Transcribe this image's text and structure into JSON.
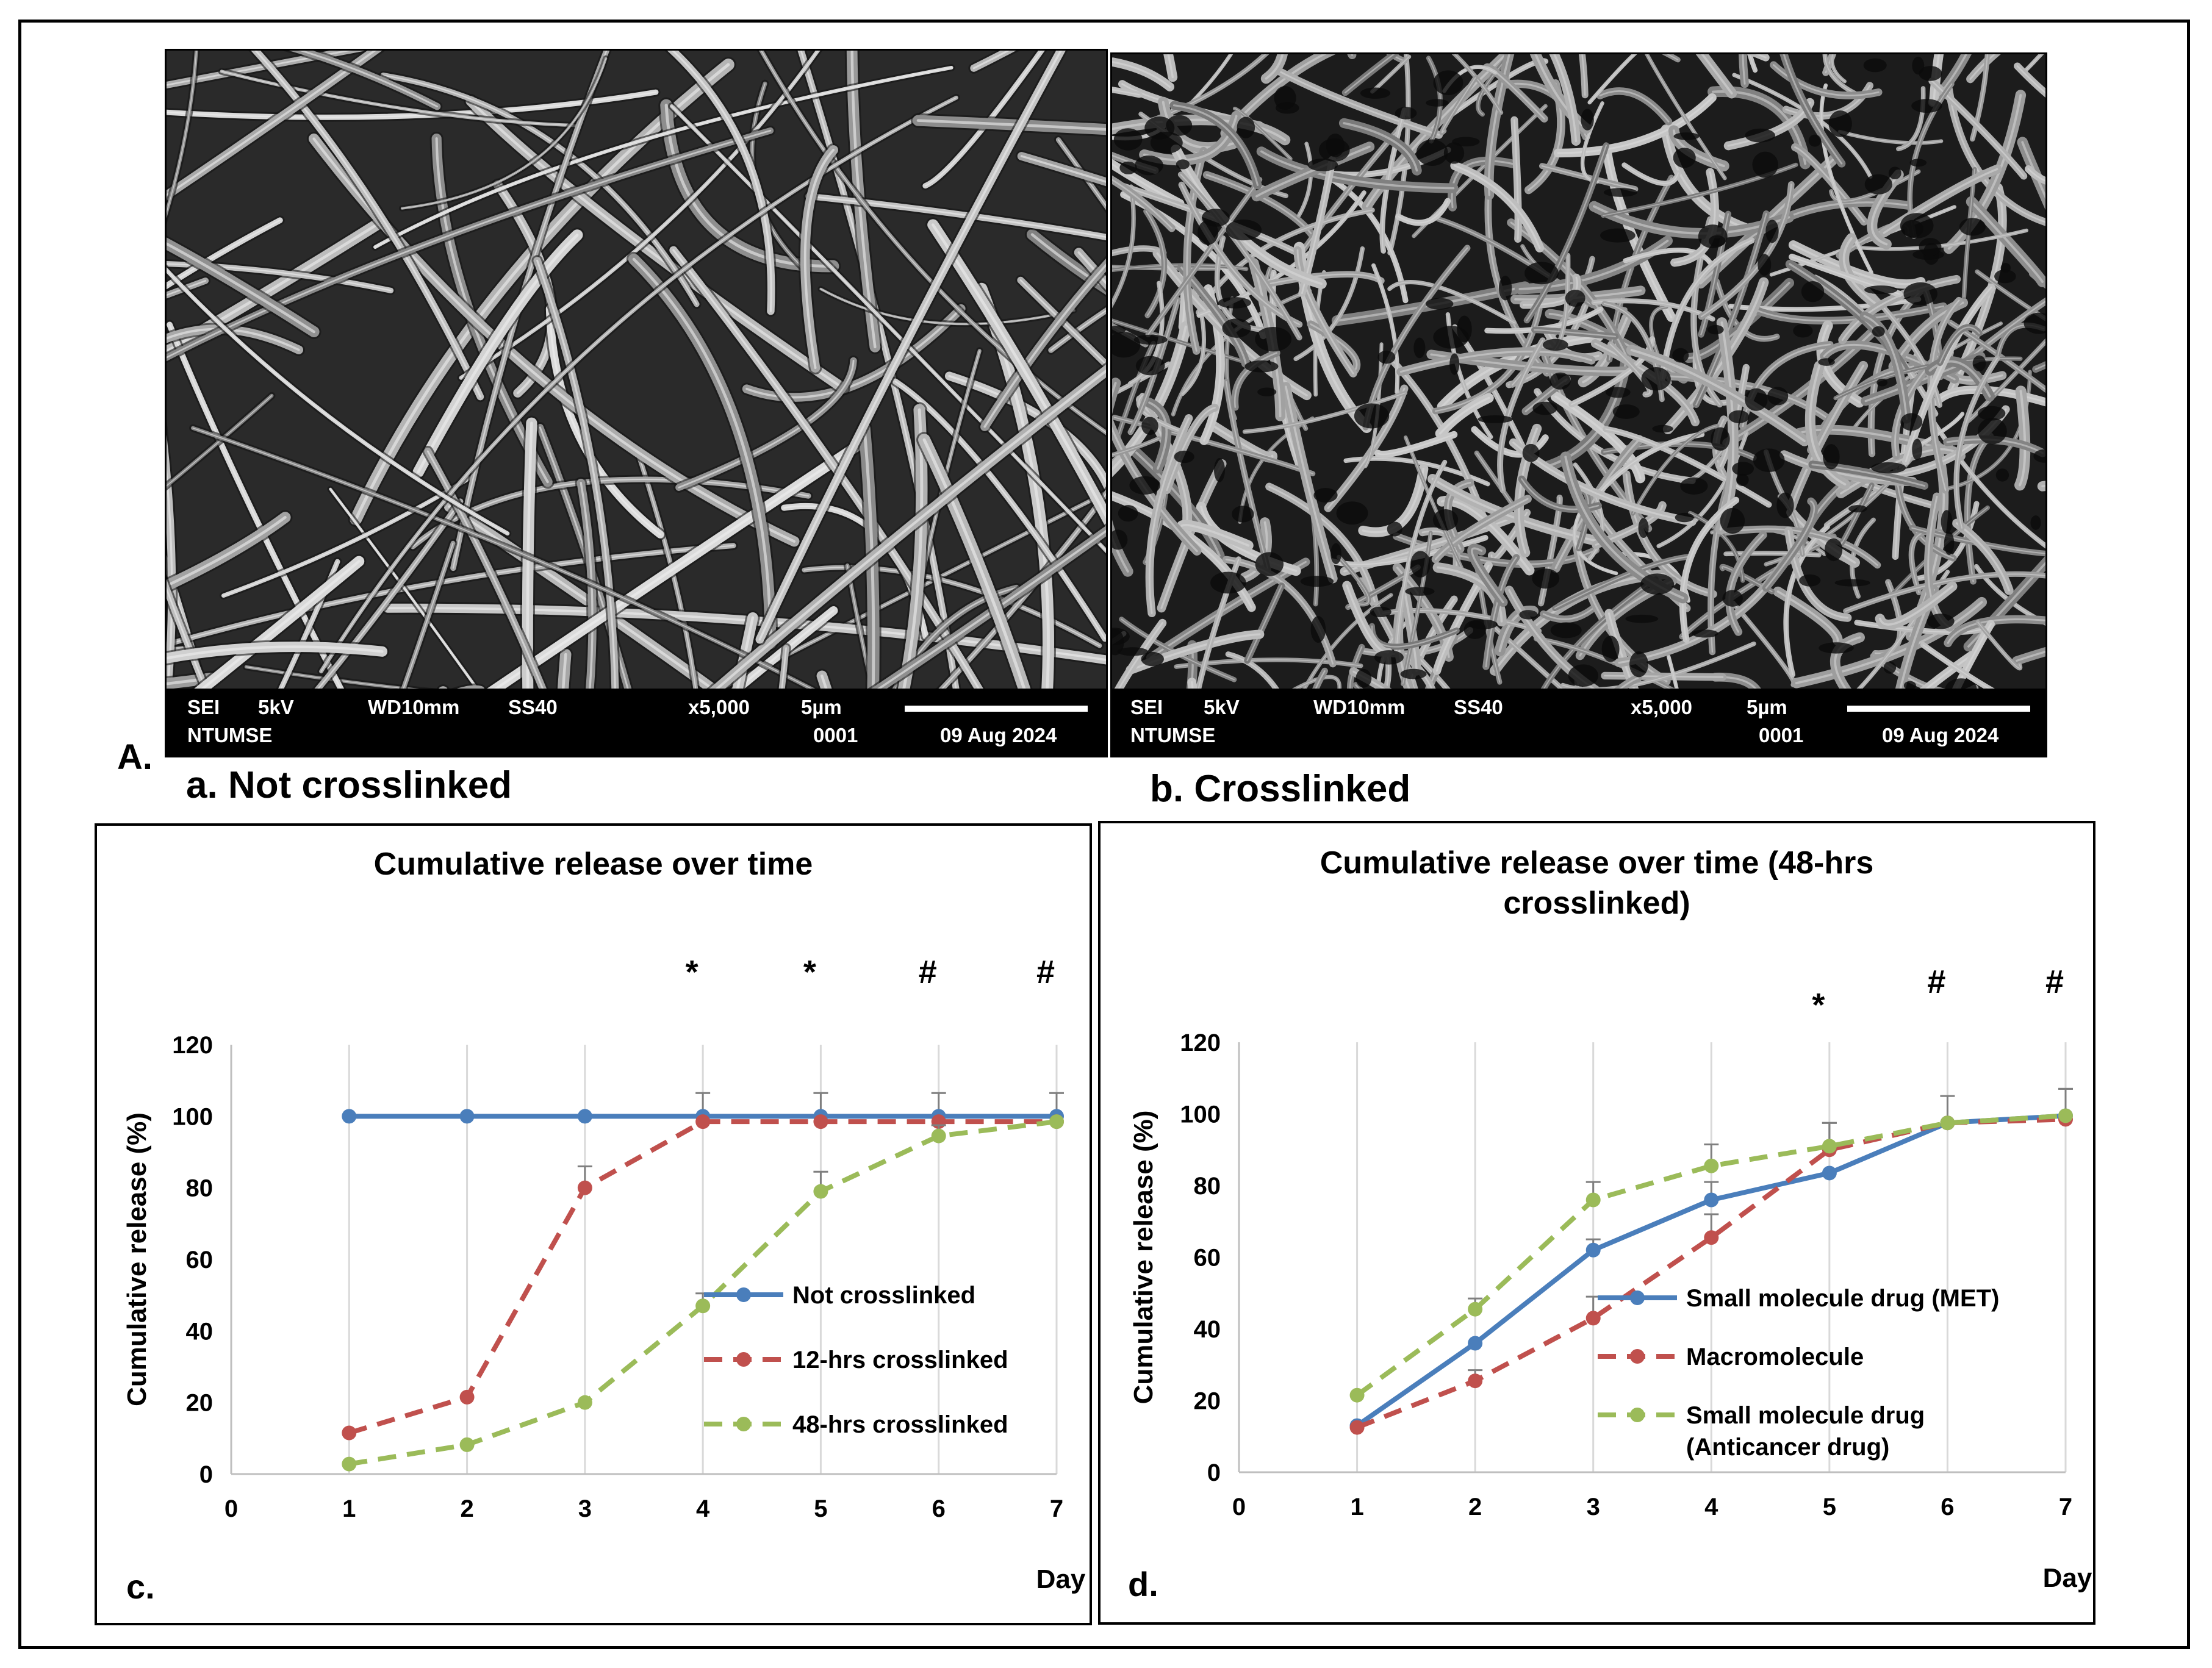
{
  "figure": {
    "label_A": "A.",
    "label_a": "a. Not crosslinked",
    "label_b": "b. Crosslinked",
    "label_c": "c.",
    "label_d": "d."
  },
  "sem": {
    "panels": [
      {
        "id": "a",
        "detector": "SEI",
        "voltage": "5kV",
        "wd": "WD10mm",
        "spot": "SS40",
        "magnification": "x5,000",
        "scale": "5µm",
        "lab": "NTUMSE",
        "image_no": "0001",
        "date": "09 Aug 2024",
        "texture": "sparse-fibers"
      },
      {
        "id": "b",
        "detector": "SEI",
        "voltage": "5kV",
        "wd": "WD10mm",
        "spot": "SS40",
        "magnification": "x5,000",
        "scale": "5µm",
        "lab": "NTUMSE",
        "image_no": "0001",
        "date": "09 Aug 2024",
        "texture": "dense-porous-mesh"
      }
    ]
  },
  "chart_data": [
    {
      "type": "line",
      "title": "Cumulative release over time",
      "xlabel": "Day",
      "ylabel": "Cumulative release  (%)",
      "x": [
        1,
        2,
        3,
        4,
        5,
        6,
        7
      ],
      "xlim": [
        0,
        7
      ],
      "ylim": [
        0,
        120
      ],
      "xticks": [
        "0",
        "1",
        "2",
        "3",
        "4",
        "5",
        "6",
        "7"
      ],
      "yticks": [
        "0",
        "20",
        "40",
        "60",
        "80",
        "100",
        "120"
      ],
      "grid": "vertical",
      "legend_position": "lower-right",
      "series": [
        {
          "name": "Not crosslinked",
          "color": "#4a7ebb",
          "dash": "solid",
          "values": [
            100,
            100,
            100,
            100,
            100,
            100,
            100
          ],
          "errors": [
            0,
            0,
            0,
            6.5,
            6.5,
            6.5,
            6.5
          ]
        },
        {
          "name": "12-hrs crosslinked",
          "color": "#c0504d",
          "dash": "dashed",
          "values": [
            11.5,
            21.5,
            80,
            98.5,
            98.5,
            98.5,
            98.5
          ],
          "errors": [
            0,
            0,
            6,
            0,
            0,
            0,
            0
          ]
        },
        {
          "name": "48-hrs crosslinked",
          "color": "#9bbb59",
          "dash": "dashed",
          "values": [
            2.8,
            8.2,
            20,
            47,
            79,
            94.5,
            98.5
          ],
          "errors": [
            0,
            0,
            0,
            3.5,
            5.5,
            3,
            0
          ]
        }
      ],
      "annotations": [
        {
          "x": 4,
          "text": "*"
        },
        {
          "x": 5,
          "text": "*"
        },
        {
          "x": 6,
          "text": "#"
        },
        {
          "x": 7,
          "text": "#"
        }
      ]
    },
    {
      "type": "line",
      "title": "Cumulative release over time (48-hrs crosslinked)",
      "title_lines": [
        "Cumulative release over time (48-hrs",
        "crosslinked)"
      ],
      "xlabel": "Day",
      "ylabel": "Cumulative release  (%)",
      "x": [
        1,
        2,
        3,
        4,
        5,
        6,
        7
      ],
      "xlim": [
        0,
        7
      ],
      "ylim": [
        0,
        120
      ],
      "xticks": [
        "0",
        "1",
        "2",
        "3",
        "4",
        "5",
        "6",
        "7"
      ],
      "yticks": [
        "0",
        "20",
        "40",
        "60",
        "80",
        "100",
        "120"
      ],
      "grid": "vertical",
      "legend_position": "lower-right",
      "series": [
        {
          "name": "Small molecule drug (MET)",
          "color": "#4a7ebb",
          "dash": "solid",
          "values": [
            13,
            36,
            62,
            76,
            83.5,
            97.5,
            99.5
          ],
          "errors": [
            0,
            0,
            3,
            5,
            0,
            7.5,
            7.5
          ]
        },
        {
          "name": "Macromolecule",
          "color": "#c0504d",
          "dash": "dashed",
          "values": [
            12.5,
            25.5,
            43,
            65.5,
            90,
            97.5,
            98.5
          ],
          "errors": [
            0,
            3,
            6,
            6.5,
            7.5,
            0,
            0
          ]
        },
        {
          "name": "Small molecule drug (Anticancer drug)",
          "legend_lines": [
            "Small molecule drug",
            "(Anticancer drug)"
          ],
          "color": "#9bbb59",
          "dash": "dashed",
          "values": [
            21.5,
            45.5,
            76,
            85.5,
            91,
            97.5,
            99.5
          ],
          "errors": [
            0,
            3,
            5,
            6,
            6.5,
            0,
            7.5
          ]
        }
      ],
      "annotations": [
        {
          "x": 5,
          "text": "*"
        },
        {
          "x": 6,
          "text": "#"
        },
        {
          "x": 7,
          "text": "#"
        }
      ]
    }
  ]
}
